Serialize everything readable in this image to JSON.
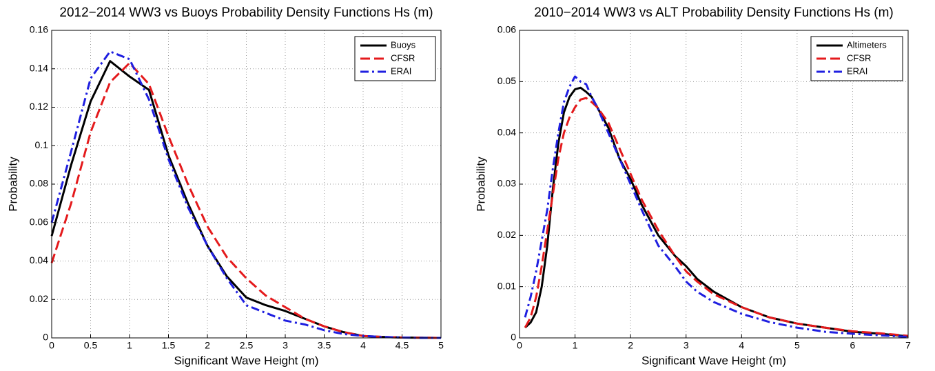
{
  "chart_data": [
    {
      "type": "line",
      "title": "2012−2014 WW3 vs Buoys Probability Density Functions Hs (m)",
      "xlabel": "Significant Wave Height (m)",
      "ylabel": "Probability",
      "x": [
        0,
        0.25,
        0.5,
        0.75,
        1,
        1.25,
        1.5,
        1.75,
        2,
        2.25,
        2.5,
        2.75,
        3,
        3.25,
        3.5,
        3.75,
        4,
        4.25,
        4.5,
        4.75,
        5
      ],
      "series": [
        {
          "name": "Buoys",
          "color": "#000000",
          "linestyle": "solid",
          "values": [
            0.053,
            0.09,
            0.123,
            0.144,
            0.136,
            0.129,
            0.095,
            0.07,
            0.048,
            0.032,
            0.021,
            0.017,
            0.014,
            0.01,
            0.006,
            0.003,
            0.001,
            0.0005,
            0.0002,
            0.0001,
            0
          ]
        },
        {
          "name": "CFSR",
          "color": "#e41a1c",
          "linestyle": "dashed",
          "values": [
            0.039,
            0.07,
            0.107,
            0.133,
            0.143,
            0.132,
            0.105,
            0.08,
            0.058,
            0.042,
            0.031,
            0.022,
            0.016,
            0.01,
            0.006,
            0.003,
            0.001,
            0.0005,
            0.0002,
            0.0001,
            0
          ]
        },
        {
          "name": "ERAI",
          "color": "#1f1fe0",
          "linestyle": "dashdot",
          "values": [
            0.06,
            0.097,
            0.135,
            0.149,
            0.145,
            0.124,
            0.093,
            0.068,
            0.048,
            0.031,
            0.017,
            0.013,
            0.009,
            0.007,
            0.004,
            0.002,
            0.001,
            0.0005,
            0.0002,
            0,
            0
          ]
        }
      ],
      "xlim": [
        0,
        5
      ],
      "ylim": [
        0,
        0.16
      ],
      "xticks": [
        0,
        0.5,
        1,
        1.5,
        2,
        2.5,
        3,
        3.5,
        4,
        4.5,
        5
      ],
      "yticks": [
        0,
        0.02,
        0.04,
        0.06,
        0.08,
        0.1,
        0.12,
        0.14,
        0.16
      ],
      "grid": true,
      "legend": "upper right"
    },
    {
      "type": "line",
      "title": "2010−2014 WW3 vs ALT Probability Density Functions Hs (m)",
      "xlabel": "Significant Wave Height (m)",
      "ylabel": "Probability",
      "x": [
        0.1,
        0.2,
        0.3,
        0.4,
        0.5,
        0.6,
        0.7,
        0.8,
        0.9,
        1.0,
        1.1,
        1.2,
        1.3,
        1.4,
        1.6,
        1.8,
        2.0,
        2.2,
        2.5,
        2.8,
        3.0,
        3.2,
        3.5,
        4,
        4.5,
        5,
        5.5,
        6,
        6.5,
        7
      ],
      "series": [
        {
          "name": "Altimeters",
          "color": "#000000",
          "linestyle": "solid",
          "values": [
            0.002,
            0.003,
            0.005,
            0.01,
            0.018,
            0.029,
            0.038,
            0.044,
            0.047,
            0.0485,
            0.0488,
            0.048,
            0.047,
            0.045,
            0.041,
            0.035,
            0.031,
            0.026,
            0.02,
            0.016,
            0.014,
            0.0115,
            0.009,
            0.006,
            0.004,
            0.0028,
            0.002,
            0.0012,
            0.0008,
            0.0003
          ]
        },
        {
          "name": "CFSR",
          "color": "#e41a1c",
          "linestyle": "dashed",
          "values": [
            0.002,
            0.004,
            0.008,
            0.014,
            0.021,
            0.028,
            0.035,
            0.04,
            0.043,
            0.045,
            0.0465,
            0.0468,
            0.046,
            0.045,
            0.042,
            0.037,
            0.032,
            0.027,
            0.021,
            0.016,
            0.013,
            0.011,
            0.0085,
            0.006,
            0.004,
            0.0028,
            0.002,
            0.0013,
            0.0009,
            0.0004
          ]
        },
        {
          "name": "ERAI",
          "color": "#1f1fe0",
          "linestyle": "dashdot",
          "values": [
            0.004,
            0.008,
            0.013,
            0.019,
            0.025,
            0.033,
            0.04,
            0.046,
            0.049,
            0.051,
            0.05,
            0.0495,
            0.047,
            0.045,
            0.04,
            0.035,
            0.03,
            0.025,
            0.018,
            0.014,
            0.011,
            0.009,
            0.007,
            0.0047,
            0.0031,
            0.002,
            0.0012,
            0.0008,
            0.0005,
            0.0002
          ]
        }
      ],
      "xlim": [
        0,
        7
      ],
      "ylim": [
        0,
        0.06
      ],
      "xticks": [
        0,
        1,
        2,
        3,
        4,
        5,
        6,
        7
      ],
      "yticks": [
        0,
        0.01,
        0.02,
        0.03,
        0.04,
        0.05,
        0.06
      ],
      "grid": true,
      "legend": "upper right"
    }
  ]
}
